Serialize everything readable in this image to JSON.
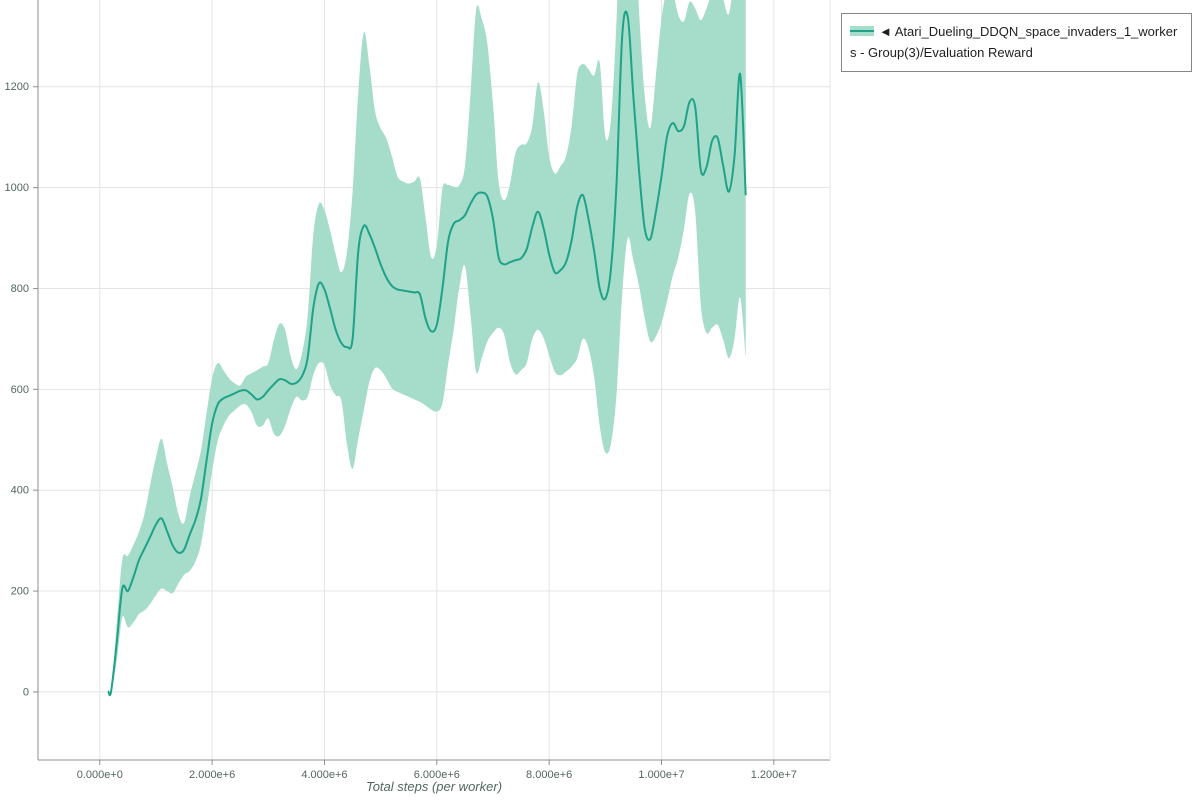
{
  "chart_data": {
    "type": "line",
    "title": "",
    "xlabel": "Total steps (per worker)",
    "ylabel": "",
    "xlim": [
      -1100000,
      13000000
    ],
    "ylim": [
      -135,
      1372
    ],
    "x_scale": 1000000,
    "grid": true,
    "legend_position": "top-right-outside",
    "x_ticks": [
      {
        "v": 0,
        "label": "0.000e+0"
      },
      {
        "v": 2000000,
        "label": "2.000e+6"
      },
      {
        "v": 4000000,
        "label": "4.000e+6"
      },
      {
        "v": 6000000,
        "label": "6.000e+6"
      },
      {
        "v": 8000000,
        "label": "8.000e+6"
      },
      {
        "v": 10000000,
        "label": "1.000e+7"
      },
      {
        "v": 12000000,
        "label": "1.200e+7"
      }
    ],
    "y_ticks": [
      {
        "v": 0,
        "label": "0"
      },
      {
        "v": 200,
        "label": "200"
      },
      {
        "v": 400,
        "label": "400"
      },
      {
        "v": 600,
        "label": "600"
      },
      {
        "v": 800,
        "label": "800"
      },
      {
        "v": 1000,
        "label": "1000"
      },
      {
        "v": 1200,
        "label": "1200"
      }
    ],
    "colors": {
      "grid": "#e4e4e4",
      "axis": "#8f8f8f",
      "tick_label": "#52675f",
      "legend_border": "#868686",
      "legend_text": "#1f1f1f"
    },
    "series": [
      {
        "name": "◄ Atari_Dueling_DDQN_space_invaders_1_workers - Group(3)/Evaluation Reward",
        "color": "#1fa287",
        "band_color": "#a5dcca",
        "x": [
          0.15,
          0.2,
          0.3,
          0.4,
          0.5,
          0.6,
          0.7,
          0.8,
          0.9,
          1.0,
          1.1,
          1.2,
          1.3,
          1.4,
          1.5,
          1.6,
          1.7,
          1.8,
          1.9,
          2.0,
          2.1,
          2.2,
          2.3,
          2.4,
          2.5,
          2.6,
          2.7,
          2.8,
          2.9,
          3.0,
          3.1,
          3.2,
          3.3,
          3.4,
          3.5,
          3.6,
          3.7,
          3.8,
          3.9,
          4.0,
          4.1,
          4.2,
          4.3,
          4.4,
          4.5,
          4.6,
          4.7,
          4.8,
          4.9,
          5.0,
          5.1,
          5.2,
          5.3,
          5.4,
          5.5,
          5.6,
          5.7,
          5.8,
          5.9,
          6.0,
          6.1,
          6.2,
          6.3,
          6.4,
          6.5,
          6.6,
          6.7,
          6.8,
          6.9,
          7.0,
          7.1,
          7.2,
          7.3,
          7.4,
          7.5,
          7.6,
          7.7,
          7.8,
          7.9,
          8.0,
          8.1,
          8.2,
          8.3,
          8.4,
          8.5,
          8.6,
          8.7,
          8.8,
          8.9,
          9.0,
          9.1,
          9.2,
          9.3,
          9.4,
          9.5,
          9.6,
          9.7,
          9.8,
          9.9,
          10.0,
          10.1,
          10.2,
          10.3,
          10.4,
          10.5,
          10.6,
          10.7,
          10.8,
          10.9,
          11.0,
          11.1,
          11.2,
          11.3,
          11.4,
          11.5
        ],
        "mean": [
          2,
          0,
          95,
          205,
          200,
          228,
          262,
          285,
          308,
          332,
          344,
          318,
          290,
          276,
          282,
          312,
          340,
          382,
          458,
          532,
          570,
          582,
          587,
          592,
          597,
          598,
          590,
          580,
          585,
          598,
          610,
          620,
          618,
          611,
          613,
          626,
          662,
          760,
          810,
          798,
          760,
          718,
          692,
          684,
          700,
          872,
          924,
          908,
          880,
          848,
          822,
          805,
          798,
          796,
          794,
          792,
          788,
          740,
          715,
          728,
          800,
          892,
          928,
          935,
          945,
          968,
          986,
          990,
          982,
          938,
          862,
          848,
          852,
          856,
          860,
          878,
          922,
          952,
          920,
          868,
          832,
          836,
          852,
          895,
          962,
          985,
          938,
          875,
          800,
          780,
          838,
          1010,
          1300,
          1338,
          1180,
          1035,
          920,
          898,
          952,
          1022,
          1102,
          1128,
          1112,
          1122,
          1170,
          1160,
          1035,
          1040,
          1092,
          1098,
          1042,
          992,
          1062,
          1225,
          985
        ],
        "lower": [
          2,
          0,
          60,
          148,
          128,
          138,
          155,
          162,
          175,
          192,
          205,
          200,
          196,
          215,
          232,
          240,
          258,
          292,
          362,
          438,
          498,
          528,
          548,
          558,
          568,
          570,
          555,
          528,
          528,
          542,
          512,
          508,
          528,
          562,
          585,
          578,
          585,
          628,
          652,
          648,
          608,
          588,
          578,
          492,
          442,
          502,
          558,
          615,
          642,
          638,
          622,
          602,
          595,
          590,
          585,
          580,
          575,
          568,
          560,
          556,
          572,
          648,
          718,
          802,
          845,
          748,
          635,
          662,
          695,
          712,
          722,
          708,
          655,
          630,
          638,
          652,
          700,
          718,
          702,
          668,
          635,
          628,
          635,
          645,
          662,
          700,
          682,
          625,
          528,
          475,
          492,
          592,
          788,
          900,
          855,
          805,
          742,
          695,
          705,
          732,
          775,
          825,
          862,
          918,
          988,
          952,
          768,
          712,
          722,
          728,
          698,
          662,
          700,
          782,
          662
        ],
        "upper": [
          2,
          0,
          132,
          262,
          270,
          292,
          318,
          355,
          412,
          465,
          502,
          452,
          405,
          352,
          335,
          388,
          432,
          478,
          552,
          622,
          652,
          638,
          622,
          612,
          608,
          625,
          632,
          638,
          645,
          652,
          698,
          730,
          718,
          665,
          640,
          672,
          745,
          905,
          968,
          955,
          915,
          868,
          832,
          872,
          992,
          1185,
          1308,
          1242,
          1152,
          1118,
          1098,
          1062,
          1022,
          1012,
          1008,
          1012,
          1018,
          940,
          862,
          885,
          998,
          1005,
          1002,
          1005,
          1042,
          1185,
          1352,
          1335,
          1285,
          1165,
          1012,
          975,
          1005,
          1068,
          1085,
          1088,
          1122,
          1208,
          1155,
          1062,
          1028,
          1042,
          1062,
          1122,
          1225,
          1245,
          1235,
          1222,
          1248,
          1102,
          1135,
          1335,
          1650,
          1720,
          1585,
          1352,
          1185,
          1118,
          1222,
          1335,
          1392,
          1388,
          1342,
          1330,
          1368,
          1355,
          1332,
          1355,
          1385,
          1392,
          1372,
          1345,
          1432,
          1565,
          1432
        ]
      }
    ]
  },
  "legend": {
    "label": "◄ Atari_Dueling_DDQN_space_invaders_1_workers - Group(3)/Evaluation Reward"
  }
}
